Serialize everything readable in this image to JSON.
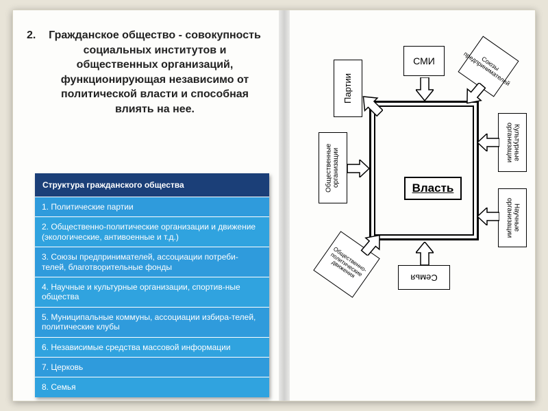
{
  "heading": {
    "number": "2.",
    "text": "Гражданское общество  - совокупность социальных институтов и общественных организаций, функционирующая независимо от политической власти и способная влиять на нее."
  },
  "structure_table": {
    "header": "Структура гражданского общества",
    "header_bg": "#1b3f78",
    "row_bg": "#2f9bdc",
    "row_alt_bg": "#30a3df",
    "rows": [
      "1. Политические партии",
      "2. Общественно-политические организации и движение (экологические, антивоенные и т.д.)",
      "3. Союзы предпринимателей, ассоциации потреби-телей, благотворительные фонды",
      "4. Научные и культурные организации, спортив-ные общества",
      "5. Муниципальные коммуны, ассоциации избира-телей, политические клубы",
      "6. Независимые средства массовой информации",
      "7. Церковь",
      "8. Семья"
    ]
  },
  "diagram": {
    "center": "Власть",
    "nodes": {
      "top": "СМИ",
      "top_right": "Союзы предпринимателей",
      "right1": "Культурные организации",
      "right2": "Научные организации",
      "bottom": "Семья",
      "bottom_left": "Общественно-политические движения",
      "left1": "Общественные организации",
      "top_left": "Партии"
    },
    "colors": {
      "border": "#000000",
      "fill": "#ffffff",
      "text": "#000000"
    }
  },
  "page_bg": "#fdfdfb",
  "outer_bg": "#e8e4d8"
}
